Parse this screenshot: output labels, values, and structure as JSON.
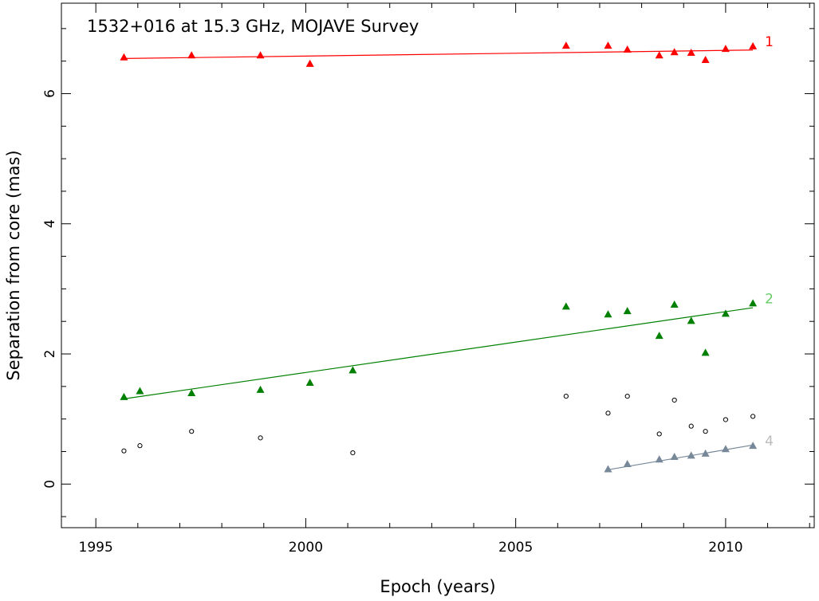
{
  "chart_data": {
    "type": "scatter",
    "title": "1532+016 at 15.3 GHz, MOJAVE Survey",
    "xlabel": "Epoch (years)",
    "ylabel": "Separation from core (mas)",
    "xlim": [
      1994.18,
      2012.11
    ],
    "ylim": [
      -0.67,
      7.39
    ],
    "xticks": [
      1995,
      2000,
      2005,
      2010
    ],
    "xtick_labels": [
      "1995",
      "2000",
      "2005",
      "2010"
    ],
    "yticks": [
      0,
      2,
      4,
      6
    ],
    "ytick_labels": [
      "0",
      "2",
      "4",
      "6"
    ],
    "grid": false,
    "series": [
      {
        "name": "1",
        "label": "1",
        "color": "#ff0000",
        "marker": "triangle",
        "x": [
          1995.67,
          1997.28,
          1998.92,
          2000.1,
          2006.2,
          2007.2,
          2007.66,
          2008.42,
          2008.78,
          2009.18,
          2009.52,
          2010.0,
          2010.65
        ],
        "y": [
          6.56,
          6.59,
          6.59,
          6.46,
          6.74,
          6.74,
          6.68,
          6.59,
          6.64,
          6.63,
          6.52,
          6.69,
          6.73
        ],
        "fit": {
          "x": [
            1995.67,
            2010.65
          ],
          "y": [
            6.54,
            6.67
          ]
        }
      },
      {
        "name": "2",
        "label": "2",
        "color": "#008000",
        "label_color": "#66cc66",
        "marker": "triangle",
        "x": [
          1995.67,
          1996.05,
          1997.28,
          1998.92,
          2000.1,
          2001.12,
          2006.2,
          2007.2,
          2007.66,
          2008.42,
          2008.78,
          2009.18,
          2009.52,
          2010.0,
          2010.65
        ],
        "y": [
          1.34,
          1.43,
          1.4,
          1.45,
          1.56,
          1.75,
          2.73,
          2.61,
          2.66,
          2.28,
          2.76,
          2.51,
          2.02,
          2.62,
          2.78
        ],
        "fit": {
          "x": [
            1995.67,
            2010.65
          ],
          "y": [
            1.31,
            2.71
          ]
        }
      },
      {
        "name": "unassigned",
        "color": "#000000",
        "marker": "open-circle",
        "x": [
          1995.67,
          1996.05,
          1997.28,
          1998.92,
          2001.12,
          2006.2,
          2007.2,
          2007.66,
          2008.42,
          2008.78,
          2009.18,
          2009.52,
          2010.0,
          2010.65
        ],
        "y": [
          0.51,
          0.59,
          0.81,
          0.71,
          0.48,
          1.35,
          1.09,
          1.35,
          0.77,
          1.29,
          0.89,
          0.81,
          0.99,
          1.04
        ]
      },
      {
        "name": "4",
        "label": "4",
        "color": "#778899",
        "label_color": "#bbbbbb",
        "marker": "triangle",
        "x": [
          2007.2,
          2007.66,
          2008.42,
          2008.78,
          2009.18,
          2009.52,
          2010.0,
          2010.65
        ],
        "y": [
          0.23,
          0.31,
          0.38,
          0.42,
          0.44,
          0.47,
          0.54,
          0.59
        ],
        "fit": {
          "x": [
            2007.2,
            2010.65
          ],
          "y": [
            0.22,
            0.6
          ]
        }
      }
    ]
  }
}
